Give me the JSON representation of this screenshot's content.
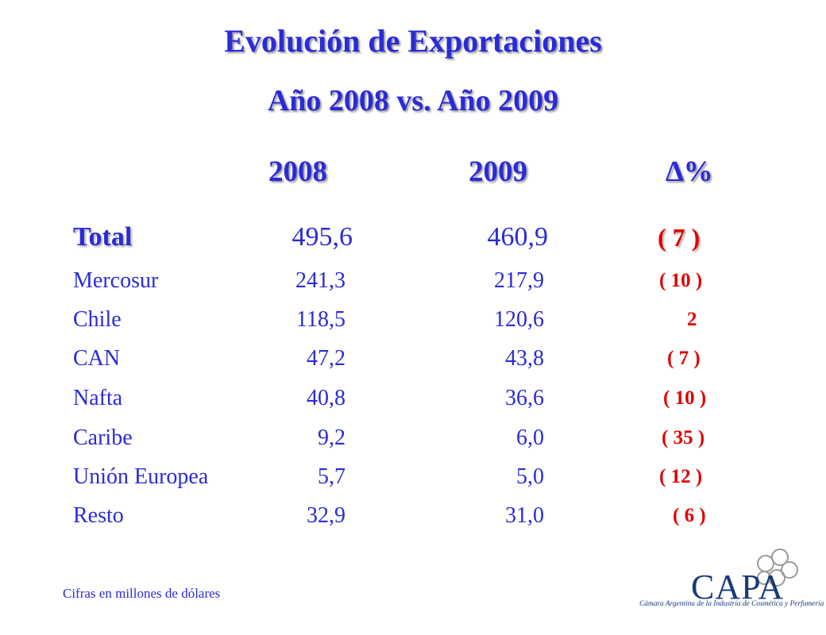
{
  "title": "Evolución de Exportaciones",
  "subtitle": "Año 2008  vs.  Año 2009",
  "headers": {
    "y2008": "2008",
    "y2009": "2009",
    "delta": "∆%"
  },
  "rows": [
    {
      "region": "Total",
      "y2008": "495,6",
      "y2009": "460,9",
      "delta": "( 7 )"
    },
    {
      "region": "Mercosur",
      "y2008": "241,3",
      "y2009": "217,9",
      "delta": "( 10 )"
    },
    {
      "region": "Chile",
      "y2008": "118,5",
      "y2009": "120,6",
      "delta": "2"
    },
    {
      "region": "CAN",
      "y2008": "47,2",
      "y2009": "43,8",
      "delta": "( 7 )"
    },
    {
      "region": "Nafta",
      "y2008": "40,8",
      "y2009": "36,6",
      "delta": "( 10 )"
    },
    {
      "region": "Caribe",
      "y2008": "9,2",
      "y2009": "6,0",
      "delta": "( 35 )"
    },
    {
      "region": "Unión Europea",
      "y2008": "5,7",
      "y2009": "5,0",
      "delta": "( 12 )"
    },
    {
      "region": "Resto",
      "y2008": "32,9",
      "y2009": "31,0",
      "delta": "( 6 )"
    }
  ],
  "footnote": "Cifras en millones de dólares",
  "logo": {
    "word": "CAPA",
    "caption": "Cámara Argentina de la Industria de Cosmética y Perfumería"
  },
  "colors": {
    "text": "#2b2bd6",
    "negative": "#e00000",
    "logo": "#163a7a"
  }
}
